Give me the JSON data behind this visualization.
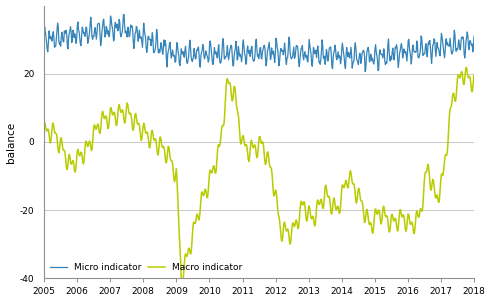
{
  "title": "",
  "xlabel": "",
  "ylabel": "balance",
  "xlim": [
    2005.0,
    2018.0
  ],
  "ylim": [
    -40,
    40
  ],
  "yticks": [
    -40,
    -20,
    0,
    20
  ],
  "xtick_years": [
    2005,
    2006,
    2007,
    2008,
    2009,
    2010,
    2011,
    2012,
    2013,
    2014,
    2015,
    2016,
    2017,
    2018
  ],
  "micro_color": "#3585bb",
  "macro_color": "#b8cc00",
  "background_color": "#ffffff",
  "grid_color": "#c0c0c0",
  "legend_labels": [
    "Micro indicator",
    "Macro indicator"
  ],
  "micro_base": 29.5,
  "micro_amplitude": 2.5,
  "figsize": [
    4.91,
    3.02
  ],
  "dpi": 100
}
